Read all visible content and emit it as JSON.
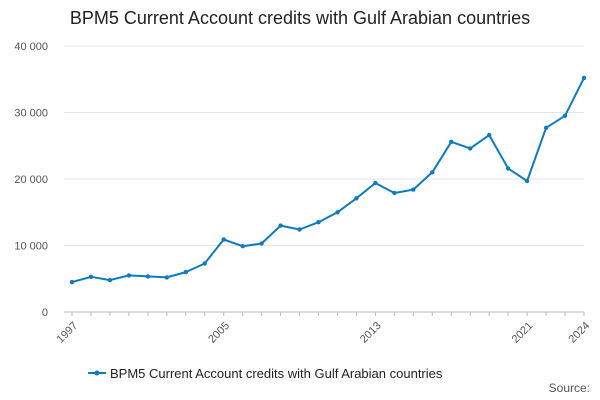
{
  "chart_data": {
    "type": "line",
    "title": "BPM5 Current Account credits with Gulf Arabian countries",
    "xlabel": "",
    "ylabel": "",
    "x": [
      1997,
      1998,
      1999,
      2000,
      2001,
      2002,
      2003,
      2004,
      2005,
      2006,
      2007,
      2008,
      2009,
      2010,
      2011,
      2012,
      2013,
      2014,
      2015,
      2016,
      2017,
      2018,
      2019,
      2020,
      2021,
      2022,
      2023,
      2024
    ],
    "x_tick_labels": [
      "1997",
      "2005",
      "2013",
      "2021",
      "2024"
    ],
    "y_tick_labels": [
      "0",
      "10 000",
      "20 000",
      "30 000",
      "40 000"
    ],
    "ylim": [
      0,
      40000
    ],
    "xlim": [
      1997,
      2024
    ],
    "grid": "horizontal",
    "legend_position": "bottom",
    "series": [
      {
        "name": "BPM5 Current Account credits with Gulf Arabian countries",
        "color": "#0f7bbf",
        "values": [
          4500,
          5300,
          4800,
          5500,
          5350,
          5200,
          6000,
          7300,
          10900,
          9900,
          10300,
          13000,
          12400,
          13500,
          15000,
          17100,
          19400,
          17900,
          18400,
          21000,
          25600,
          24600,
          26600,
          21600,
          19700,
          27700,
          29500,
          35200
        ]
      }
    ]
  },
  "source_label": "Source:"
}
